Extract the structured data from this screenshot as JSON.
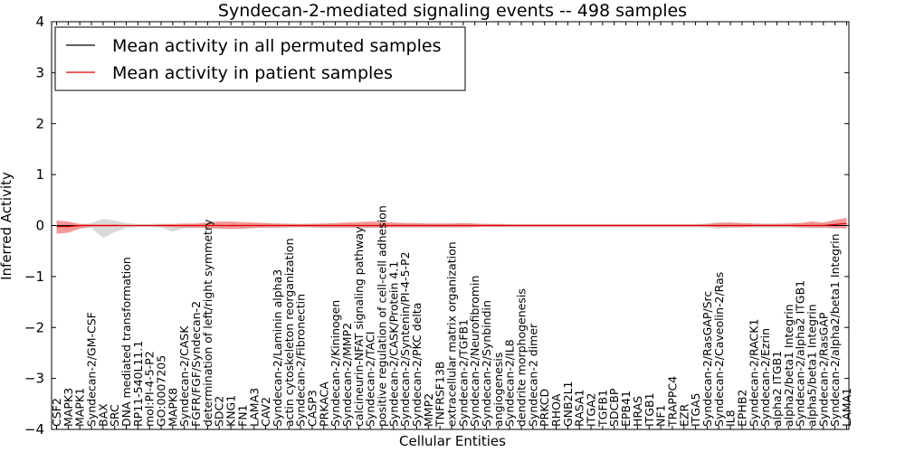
{
  "chart_data": {
    "type": "line",
    "title": "Syndecan-2-mediated signaling events -- 498 samples",
    "xlabel": "Cellular Entities",
    "ylabel": "Inferred Activity",
    "ylim": [
      -4,
      4
    ],
    "yticks": [
      -4,
      -3,
      -2,
      -1,
      0,
      1,
      2,
      3,
      4
    ],
    "grid": false,
    "legend_position": "top-left",
    "categories": [
      "CSF2",
      "MAPK3",
      "MAPK1",
      "Syndecan-2/GM-CSF",
      "BAX",
      "SRC",
      "DNA mediated transformation",
      "RP11-540L11.1",
      "mol:PI-4-5-P2",
      "GO:0007205",
      "MAPK8",
      "Syndecan-2/CASK",
      "FGFR/FGF/Syndecan-2",
      "determination of left/right symmetry",
      "SDC2",
      "KNG1",
      "FN1",
      "LAMA3",
      "CAV2",
      "Syndecan-2/Laminin alpha3",
      "actin cytoskeleton reorganization",
      "Syndecan-2/Fibronectin",
      "CASP3",
      "PRKACA",
      "Syndecan-2/Kininogen",
      "Syndecan-2/MMP2",
      "calcineurin-NFAT signaling pathway",
      "Syndecan-2/TACI",
      "positive regulation of cell-cell adhesion",
      "Syndecan-2/CASK/Protein 4.1",
      "Syndecan-2/Syntenin/PI-4-5-P2",
      "Syndecan-2/PKC delta",
      "MMP2",
      "TNFRSF13B",
      "extracellular matrix organization",
      "Syndecan-2/TGFB1",
      "Syndecan-2/Neurofibromin",
      "Syndecan-2/Synbindin",
      "angiogenesis",
      "Syndecan-2/IL8",
      "dendrite morphogenesis",
      "Syndecan-2 dimer",
      "PRKCD",
      "RHOA",
      "GNB2L1",
      "RASA1",
      "ITGA2",
      "TGFB1",
      "SDCBP",
      "EPB41",
      "HRAS",
      "ITGB1",
      "NF1",
      "TRAPPC4",
      "EZR",
      "ITGA5",
      "Syndecan-2/RasGAP/Src",
      "Syndecan-2/Caveolin-2/Ras",
      "IL8",
      "EPHB2",
      "Syndecan-2/RACK1",
      "Syndecan-2/Ezrin",
      "alpha2 ITGB1",
      "alpha2/beta1 Integrin",
      "Syndecan-2/alpha2 ITGB1",
      "alpha5/beta1 Integrin",
      "Syndecan-2/RasGAP",
      "Syndecan-2/alpha2/beta1 Integrin",
      "LAMA1"
    ],
    "series": [
      {
        "name": "Mean activity in all permuted samples",
        "color": "#000000",
        "values": [
          0,
          0,
          0,
          0,
          0,
          0,
          0,
          0,
          0,
          0,
          0,
          0,
          0,
          0,
          0,
          0,
          0,
          0,
          0,
          0,
          0,
          0,
          0,
          0,
          0,
          0,
          0,
          0,
          0,
          0,
          0,
          0,
          0,
          0,
          0,
          0,
          0,
          0,
          0,
          0,
          0,
          0,
          0,
          0,
          0,
          0,
          0,
          0,
          0,
          0,
          0,
          0,
          0,
          0,
          0,
          0,
          0,
          0,
          0,
          0,
          0,
          0,
          0,
          0,
          0,
          0,
          0,
          0,
          0
        ],
        "band_upper": [
          0.04,
          0.04,
          0.03,
          0.05,
          0.13,
          0.1,
          0.05,
          0.03,
          0.03,
          0.04,
          0.03,
          0.03,
          0.03,
          0.04,
          0.04,
          0.03,
          0.03,
          0.03,
          0.04,
          0.04,
          0.04,
          0.03,
          0.04,
          0.04,
          0.03,
          0.04,
          0.04,
          0.04,
          0.04,
          0.04,
          0.04,
          0.04,
          0.04,
          0.04,
          0.04,
          0.04,
          0.03,
          0.03,
          0.03,
          0.03,
          0.03,
          0.03,
          0.03,
          0.03,
          0.03,
          0.03,
          0.03,
          0.03,
          0.03,
          0.03,
          0.03,
          0.03,
          0.03,
          0.03,
          0.03,
          0.03,
          0.04,
          0.07,
          0.05,
          0.04,
          0.04,
          0.04,
          0.04,
          0.04,
          0.05,
          0.05,
          0.05,
          0.06,
          0.04
        ],
        "band_lower": [
          -0.04,
          -0.04,
          -0.03,
          -0.05,
          -0.24,
          -0.13,
          -0.05,
          -0.03,
          -0.03,
          -0.04,
          -0.12,
          -0.05,
          -0.04,
          -0.04,
          -0.04,
          -0.03,
          -0.03,
          -0.03,
          -0.04,
          -0.04,
          -0.04,
          -0.03,
          -0.04,
          -0.04,
          -0.03,
          -0.04,
          -0.04,
          -0.04,
          -0.04,
          -0.04,
          -0.04,
          -0.04,
          -0.04,
          -0.04,
          -0.04,
          -0.04,
          -0.03,
          -0.03,
          -0.03,
          -0.03,
          -0.03,
          -0.03,
          -0.03,
          -0.03,
          -0.03,
          -0.03,
          -0.03,
          -0.03,
          -0.03,
          -0.03,
          -0.03,
          -0.03,
          -0.03,
          -0.03,
          -0.03,
          -0.03,
          -0.04,
          -0.06,
          -0.05,
          -0.04,
          -0.04,
          -0.04,
          -0.04,
          -0.04,
          -0.05,
          -0.05,
          -0.05,
          -0.06,
          -0.04
        ]
      },
      {
        "name": "Mean activity in patient samples",
        "color": "#e00000",
        "values": [
          -0.02,
          -0.02,
          0,
          0,
          0,
          0,
          0,
          0,
          0,
          0,
          0,
          0,
          0,
          0,
          0,
          0,
          0,
          0,
          0,
          0,
          0,
          0,
          0,
          0,
          0,
          0,
          0,
          0,
          0,
          0,
          0,
          0,
          0,
          0,
          0,
          0,
          0,
          0,
          0,
          0,
          0,
          0,
          0,
          0,
          0,
          0,
          0,
          0,
          0,
          0,
          0,
          0,
          0,
          0,
          0,
          0,
          0,
          0,
          0,
          0,
          0,
          0,
          0,
          0,
          0,
          0,
          0,
          0.02,
          0.04
        ],
        "band_upper": [
          0.1,
          0.08,
          0.03,
          0.02,
          0.02,
          0.02,
          0.01,
          0.01,
          0.01,
          0.02,
          0.03,
          0.04,
          0.04,
          0.06,
          0.08,
          0.08,
          0.07,
          0.06,
          0.05,
          0.04,
          0.03,
          0.03,
          0.03,
          0.04,
          0.05,
          0.06,
          0.07,
          0.08,
          0.07,
          0.06,
          0.05,
          0.05,
          0.04,
          0.04,
          0.04,
          0.05,
          0.04,
          0.03,
          0.03,
          0.02,
          0.02,
          0.02,
          0.02,
          0.02,
          0.02,
          0.02,
          0.02,
          0.02,
          0.02,
          0.02,
          0.02,
          0.02,
          0.02,
          0.02,
          0.02,
          0.02,
          0.03,
          0.05,
          0.06,
          0.05,
          0.04,
          0.03,
          0.03,
          0.04,
          0.05,
          0.08,
          0.06,
          0.11,
          0.15
        ],
        "band_lower": [
          -0.16,
          -0.14,
          -0.06,
          -0.02,
          -0.02,
          -0.02,
          -0.01,
          -0.01,
          -0.01,
          -0.02,
          -0.03,
          -0.04,
          -0.04,
          -0.05,
          -0.06,
          -0.07,
          -0.06,
          -0.05,
          -0.04,
          -0.04,
          -0.03,
          -0.03,
          -0.03,
          -0.04,
          -0.04,
          -0.04,
          -0.04,
          -0.04,
          -0.04,
          -0.03,
          -0.03,
          -0.03,
          -0.03,
          -0.03,
          -0.03,
          -0.03,
          -0.03,
          -0.02,
          -0.02,
          -0.02,
          -0.02,
          -0.02,
          -0.02,
          -0.02,
          -0.02,
          -0.02,
          -0.02,
          -0.02,
          -0.02,
          -0.02,
          -0.02,
          -0.02,
          -0.02,
          -0.02,
          -0.02,
          -0.02,
          -0.02,
          -0.03,
          -0.03,
          -0.03,
          -0.02,
          -0.02,
          -0.02,
          -0.02,
          -0.03,
          -0.04,
          -0.04,
          -0.05,
          -0.06
        ]
      }
    ]
  },
  "colors": {
    "permuted_band": "#cccccc",
    "patient_band": "#f08080",
    "axes": "#000000",
    "background": "#ffffff"
  }
}
